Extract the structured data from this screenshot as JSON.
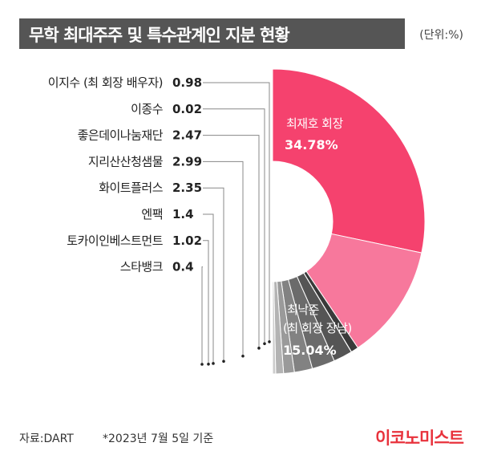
{
  "header": {
    "title": "무학 최대주주 및 특수관계인 지분 현황",
    "unit": "(단위:%)"
  },
  "footer": {
    "source": "자료:DART",
    "note": "*2023년 7월 5일 기준",
    "brand": "이코노미스트"
  },
  "colors": {
    "title_bar": "#555555",
    "main_slice": "#f5426e",
    "second_slice": "#f7789c",
    "brand": "#e8323c"
  },
  "chart_data": {
    "type": "pie",
    "donut": true,
    "unit": "%",
    "slices": [
      {
        "name": "최재호 회장",
        "value": 34.78,
        "color": "#f5426e"
      },
      {
        "name": "최낙준 (최 회장 장남)",
        "value": 15.04,
        "color": "#f7789c"
      },
      {
        "name": "이지수 (최 회장 배우자)",
        "value": 0.98,
        "color": "#3a3a3a"
      },
      {
        "name": "이종수",
        "value": 0.02,
        "color": "#2e2e2e"
      },
      {
        "name": "좋은데이나눔재단",
        "value": 2.47,
        "color": "#555555"
      },
      {
        "name": "지리산산청샘물",
        "value": 2.99,
        "color": "#6b6b6b"
      },
      {
        "name": "화이트플러스",
        "value": 2.35,
        "color": "#828282"
      },
      {
        "name": "엔팩",
        "value": 1.4,
        "color": "#9a9a9a"
      },
      {
        "name": "토카이인베스트먼트",
        "value": 1.02,
        "color": "#b3b3b3"
      },
      {
        "name": "스타뱅크",
        "value": 0.4,
        "color": "#cccccc"
      }
    ],
    "labels": {
      "main_name": "최재호 회장",
      "main_value": "34.78%",
      "second_name_line1": "최낙준",
      "second_name_line2": "(최 회장 장남)",
      "second_value": "15.04%"
    },
    "side_labels": [
      {
        "name": "이지수 (최 회장 배우자)",
        "value": "0.98"
      },
      {
        "name": "이종수",
        "value": "0.02"
      },
      {
        "name": "좋은데이나눔재단",
        "value": "2.47"
      },
      {
        "name": "지리산산청샘물",
        "value": "2.99"
      },
      {
        "name": "화이트플러스",
        "value": "2.35"
      },
      {
        "name": "엔팩",
        "value": "1.4"
      },
      {
        "name": "토카이인베스트먼트",
        "value": "1.02"
      },
      {
        "name": "스타뱅크",
        "value": "0.4"
      }
    ]
  }
}
